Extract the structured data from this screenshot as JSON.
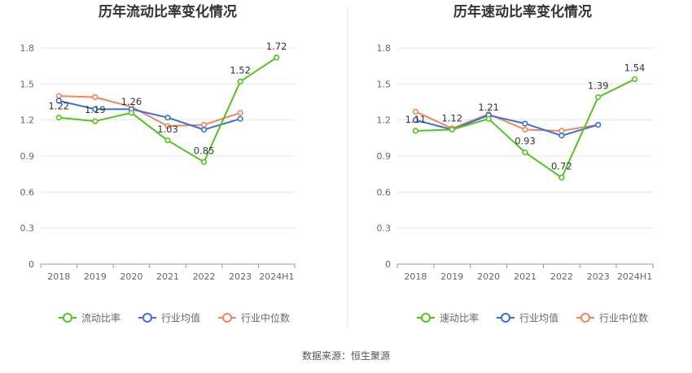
{
  "chart_data": [
    {
      "type": "line",
      "title": "历年流动比率变化情况",
      "categories": [
        "2018",
        "2019",
        "2020",
        "2021",
        "2022",
        "2023",
        "2024H1"
      ],
      "ylim": [
        0,
        1.8
      ],
      "yticks": [
        "0",
        "0.3",
        "0.6",
        "0.9",
        "1.2",
        "1.5",
        "1.8"
      ],
      "grid": true,
      "legend_position": "bottom",
      "series": [
        {
          "name": "流动比率",
          "color": "#52c41a",
          "values": [
            1.22,
            1.19,
            1.26,
            1.03,
            0.85,
            1.52,
            1.72
          ],
          "labels": [
            "1.22",
            "1.19",
            "1.26",
            "1.03",
            "0.85",
            "1.52",
            "1.72"
          ]
        },
        {
          "name": "行业均值",
          "color": "#3a6fd8",
          "values": [
            1.36,
            1.29,
            1.29,
            1.22,
            1.12,
            1.21,
            null
          ]
        },
        {
          "name": "行业中位数",
          "color": "#f0865c",
          "values": [
            1.4,
            1.39,
            1.31,
            1.15,
            1.16,
            1.26,
            null
          ]
        }
      ]
    },
    {
      "type": "line",
      "title": "历年速动比率变化情况",
      "categories": [
        "2018",
        "2019",
        "2020",
        "2021",
        "2022",
        "2023",
        "2024H1"
      ],
      "ylim": [
        0,
        1.8
      ],
      "yticks": [
        "0",
        "0.3",
        "0.6",
        "0.9",
        "1.2",
        "1.5",
        "1.8"
      ],
      "grid": true,
      "legend_position": "bottom",
      "series": [
        {
          "name": "速动比率",
          "color": "#52c41a",
          "values": [
            1.11,
            1.12,
            1.21,
            0.93,
            0.72,
            1.39,
            1.54
          ],
          "labels": [
            "1.11",
            "1.12",
            "1.21",
            "0.93",
            "0.72",
            "1.39",
            "1.54"
          ]
        },
        {
          "name": "行业均值",
          "color": "#3a6fd8",
          "values": [
            1.2,
            1.12,
            1.24,
            1.17,
            1.07,
            1.16,
            null
          ]
        },
        {
          "name": "行业中位数",
          "color": "#f0865c",
          "values": [
            1.27,
            1.13,
            1.25,
            1.12,
            1.11,
            1.16,
            null
          ]
        }
      ]
    }
  ],
  "footer": {
    "source": "数据来源：恒生聚源"
  }
}
